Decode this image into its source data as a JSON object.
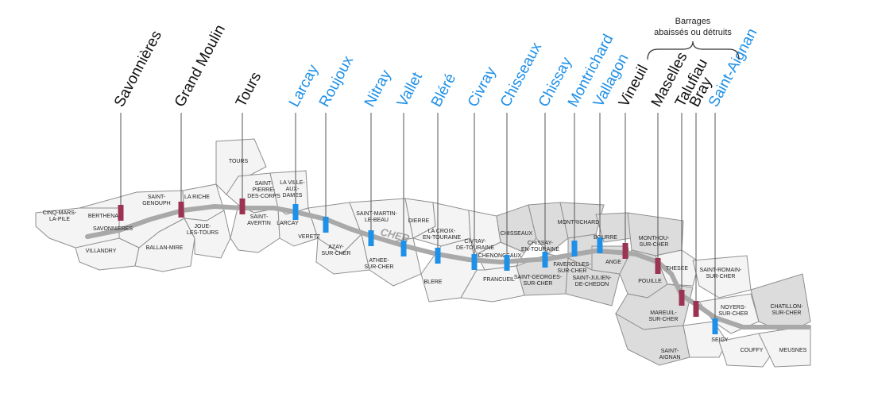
{
  "colors": {
    "maintained": "#1e90e8",
    "lowered_or_destroyed": "#9b3352",
    "label_dark": "#111111",
    "label_blue": "#1e90e8"
  },
  "annotation": {
    "line1": "Barrages",
    "line2": "abaissés ou détruits"
  },
  "river": {
    "name": "CHER"
  },
  "dams": [
    {
      "name": "Savonnières",
      "status": "lowered"
    },
    {
      "name": "Grand Moulin",
      "status": "lowered"
    },
    {
      "name": "Tours",
      "status": "lowered"
    },
    {
      "name": "Larcay",
      "status": "maintained"
    },
    {
      "name": "Roujoux",
      "status": "maintained"
    },
    {
      "name": "Nitray",
      "status": "maintained"
    },
    {
      "name": "Vallet",
      "status": "maintained"
    },
    {
      "name": "Bléré",
      "status": "maintained"
    },
    {
      "name": "Civray",
      "status": "maintained"
    },
    {
      "name": "Chisseaux",
      "status": "maintained"
    },
    {
      "name": "Chissay",
      "status": "maintained"
    },
    {
      "name": "Montrichard",
      "status": "maintained"
    },
    {
      "name": "Vallagon",
      "status": "maintained"
    },
    {
      "name": "Vineuil",
      "status": "lowered"
    },
    {
      "name": "Maselles",
      "status": "lowered"
    },
    {
      "name": "Talufiau",
      "status": "lowered"
    },
    {
      "name": "Bray",
      "status": "lowered"
    },
    {
      "name": "Saint-Aignan",
      "status": "maintained"
    }
  ],
  "communes": [
    {
      "lines": [
        "CINQ-MARS-",
        "LA-PILE"
      ]
    },
    {
      "lines": [
        "BERTHENAY"
      ]
    },
    {
      "lines": [
        "SAVONNIERES"
      ]
    },
    {
      "lines": [
        "VILLANDRY"
      ]
    },
    {
      "lines": [
        "SAINT-",
        "GENOUPH"
      ]
    },
    {
      "lines": [
        "BALLAN-MIRE"
      ]
    },
    {
      "lines": [
        "LA RICHE"
      ]
    },
    {
      "lines": [
        "JOUE-",
        "LES-TOURS"
      ]
    },
    {
      "lines": [
        "TOURS"
      ]
    },
    {
      "lines": [
        "SAINT-",
        "PIERRE-",
        "DES-CORPS"
      ]
    },
    {
      "lines": [
        "SAINT-",
        "AVERTIN"
      ]
    },
    {
      "lines": [
        "LA VILLE-",
        "AUX-",
        "DAMES"
      ]
    },
    {
      "lines": [
        "LARCAY"
      ]
    },
    {
      "lines": [
        "VERETZ"
      ]
    },
    {
      "lines": [
        "AZAY-",
        "SUR-CHER"
      ]
    },
    {
      "lines": [
        "SAINT-MARTIN-",
        "LE-BEAU"
      ]
    },
    {
      "lines": [
        "ATHEE-",
        "SUR-CHER"
      ]
    },
    {
      "lines": [
        "DIERRE"
      ]
    },
    {
      "lines": [
        "LA CROIX-",
        "EN-TOURAINE"
      ]
    },
    {
      "lines": [
        "BLERE"
      ]
    },
    {
      "lines": [
        "CIVRAY-",
        "DE-TOURAINE"
      ]
    },
    {
      "lines": [
        "CHENONCEAUX"
      ]
    },
    {
      "lines": [
        "CHISSEAUX"
      ]
    },
    {
      "lines": [
        "FRANCUEIL"
      ]
    },
    {
      "lines": [
        "CHISSAY-",
        "EN-TOURAINE"
      ]
    },
    {
      "lines": [
        "SAINT-GEORGES-",
        "SUR-CHER"
      ]
    },
    {
      "lines": [
        "MONTRICHARD"
      ]
    },
    {
      "lines": [
        "FAVEROLLES-",
        "SUR-CHER"
      ]
    },
    {
      "lines": [
        "SAINT-JULIEN-",
        "DE-CHEDON"
      ]
    },
    {
      "lines": [
        "BOURRE"
      ]
    },
    {
      "lines": [
        "ANGE"
      ]
    },
    {
      "lines": [
        "MONTHOU-",
        "SUR-CHER"
      ]
    },
    {
      "lines": [
        "THESEE"
      ]
    },
    {
      "lines": [
        "POUILLE"
      ]
    },
    {
      "lines": [
        "SAINT-ROMAIN-",
        "SUR-CHER"
      ]
    },
    {
      "lines": [
        "MAREUIL-",
        "SUR-CHER"
      ]
    },
    {
      "lines": [
        "NOYERS-",
        "SUR-CHER"
      ]
    },
    {
      "lines": [
        "CHATILLON-",
        "SUR-CHER"
      ]
    },
    {
      "lines": [
        "SAINT-",
        "AIGNAN"
      ]
    },
    {
      "lines": [
        "SEIGY"
      ]
    },
    {
      "lines": [
        "COUFFY"
      ]
    },
    {
      "lines": [
        "MEUSNES"
      ]
    }
  ]
}
